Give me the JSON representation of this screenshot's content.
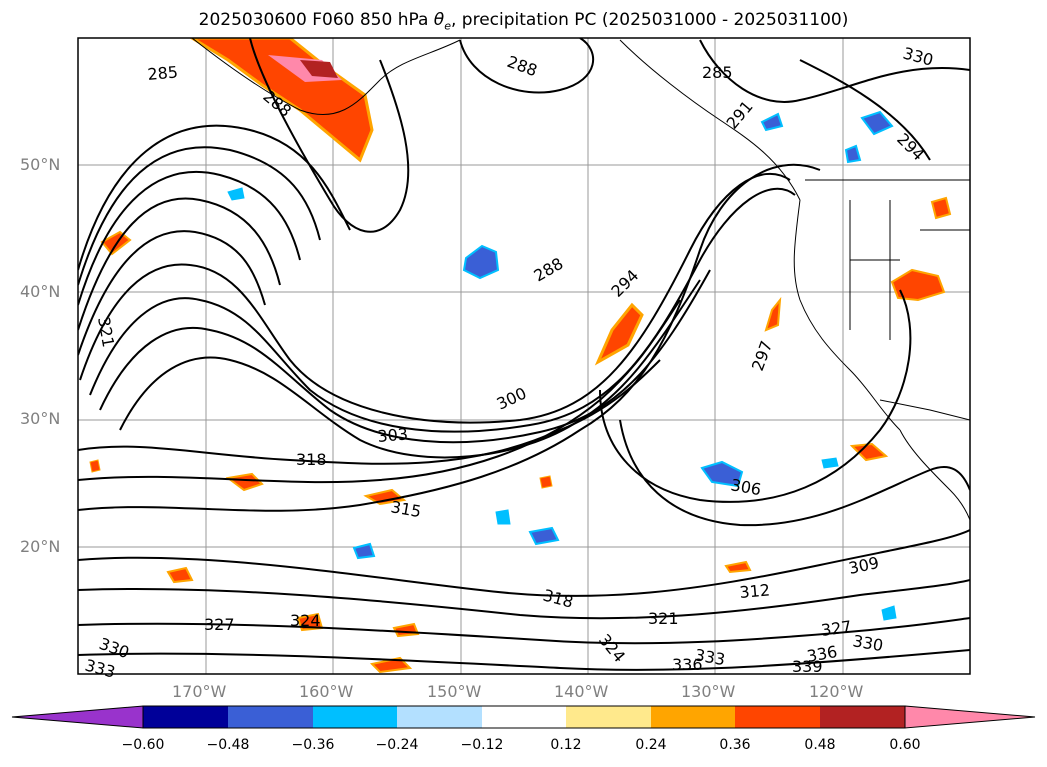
{
  "title": {
    "prefix": "2025030600 F060 850 hPa ",
    "theta_symbol": "θ",
    "theta_subscript": "e",
    "suffix": ", precipitation PC (2025031000 - 2025031100)"
  },
  "axes": {
    "latitude_labels": [
      "50°N",
      "40°N",
      "30°N",
      "20°N"
    ],
    "longitude_labels": [
      "170°W",
      "160°W",
      "150°W",
      "140°W",
      "130°W",
      "120°W"
    ]
  },
  "contour_labels": [
    "285",
    "288",
    "288",
    "285",
    "291",
    "294",
    "288",
    "294",
    "297",
    "300",
    "303",
    "318",
    "321",
    "315",
    "306",
    "309",
    "312",
    "318",
    "321",
    "324",
    "327",
    "324",
    "330",
    "333",
    "336",
    "333",
    "336",
    "339",
    "327",
    "330",
    "330"
  ],
  "colorbar": {
    "tick_labels": [
      "−0.60",
      "−0.48",
      "−0.36",
      "−0.24",
      "−0.12",
      "0.12",
      "0.24",
      "0.36",
      "0.48",
      "0.60"
    ],
    "colors": [
      "#9933cc",
      "#000099",
      "#3a5fd6",
      "#00bfff",
      "#b3e0ff",
      "#ffffff",
      "#ffe98c",
      "#ffa500",
      "#ff4500",
      "#b22222",
      "#ff88aa"
    ]
  },
  "shading_colors": {
    "negative_light": "#b3e0ff",
    "negative_mid": "#00bfff",
    "negative_strong": "#3a5fd6",
    "positive_light": "#ffe98c",
    "positive_mid": "#ffa500",
    "positive_strong": "#ff4500",
    "positive_max": "#ff88aa"
  }
}
